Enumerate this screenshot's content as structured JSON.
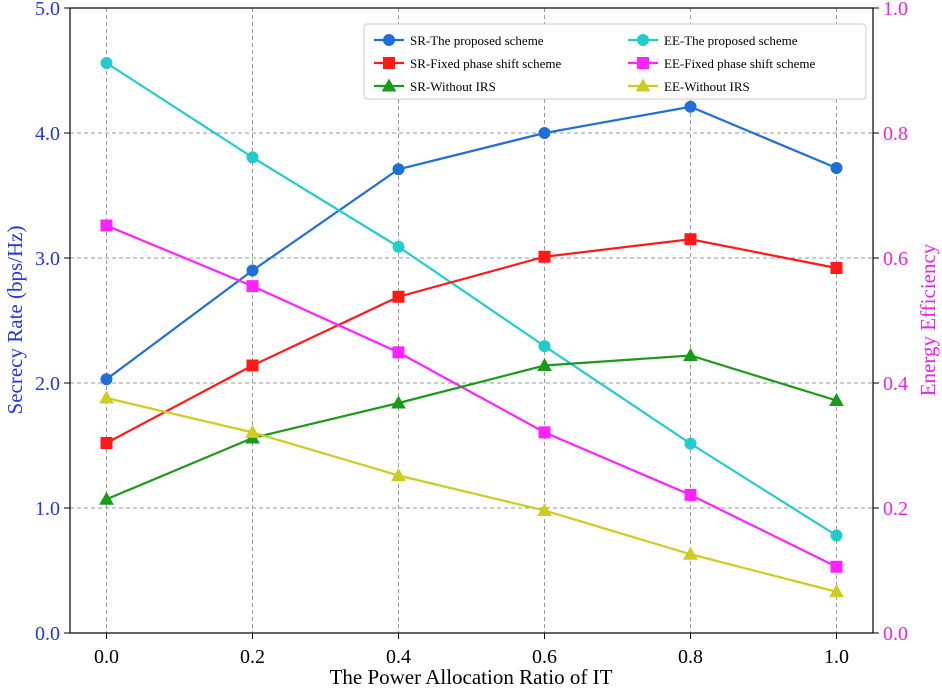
{
  "chart_data": {
    "type": "line",
    "x": [
      0.0,
      0.2,
      0.4,
      0.6,
      0.8,
      1.0
    ],
    "xlabel": "The Power Allocation Ratio of IT",
    "ylabel_left": "Secrecy Rate (bps/Hz)",
    "ylabel_right": "Energy Efficiency",
    "xlim": [
      -0.05,
      1.05
    ],
    "ylim_left": [
      0.0,
      5.0
    ],
    "ylim_right": [
      0.0,
      1.0
    ],
    "x_ticks": [
      "0.0",
      "0.2",
      "0.4",
      "0.6",
      "0.8",
      "1.0"
    ],
    "y_ticks_left": [
      "0.0",
      "1.0",
      "2.0",
      "3.0",
      "4.0",
      "5.0"
    ],
    "y_ticks_right": [
      "0.0",
      "0.2",
      "0.4",
      "0.6",
      "0.8",
      "1.0"
    ],
    "grid": true,
    "legend_position": "top-right",
    "series": [
      {
        "name": "SR-The proposed scheme",
        "axis": "left",
        "color": "#1f6fd4",
        "marker": "circle",
        "values": [
          2.03,
          2.9,
          3.71,
          4.0,
          4.21,
          3.72
        ]
      },
      {
        "name": "EE-The proposed scheme",
        "axis": "right",
        "color": "#22cccc",
        "marker": "circle",
        "values": [
          0.912,
          0.761,
          0.618,
          0.459,
          0.303,
          0.156
        ]
      },
      {
        "name": "SR-Fixed phase shift scheme",
        "axis": "left",
        "color": "#ff1a1a",
        "marker": "square",
        "values": [
          1.52,
          2.14,
          2.69,
          3.01,
          3.15,
          2.92
        ]
      },
      {
        "name": "EE-Fixed phase shift scheme",
        "axis": "right",
        "color": "#ff22ff",
        "marker": "square",
        "values": [
          0.652,
          0.555,
          0.449,
          0.321,
          0.221,
          0.106
        ]
      },
      {
        "name": "SR-Without IRS",
        "axis": "left",
        "color": "#1a9a1a",
        "marker": "triangle",
        "values": [
          1.07,
          1.56,
          1.84,
          2.14,
          2.22,
          1.86
        ]
      },
      {
        "name": "EE-Without IRS",
        "axis": "right",
        "color": "#cccc22",
        "marker": "triangle",
        "values": [
          0.376,
          0.321,
          0.252,
          0.196,
          0.126,
          0.066
        ]
      }
    ]
  }
}
